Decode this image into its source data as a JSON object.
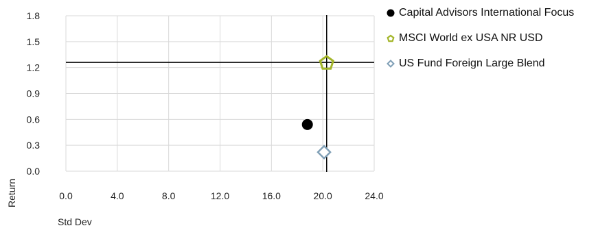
{
  "chart_data": {
    "type": "scatter",
    "xlabel": "Std Dev",
    "ylabel": "Return",
    "xlim": [
      0,
      24
    ],
    "ylim": [
      0,
      1.8
    ],
    "xticks": [
      "0.0",
      "4.0",
      "8.0",
      "12.0",
      "16.0",
      "20.0",
      "24.0"
    ],
    "yticks": [
      "0.0",
      "0.3",
      "0.6",
      "0.9",
      "1.2",
      "1.5",
      "1.8"
    ],
    "grid": true,
    "legend_position": "right",
    "reference_lines": {
      "x": 20.3,
      "y": 1.26
    },
    "series": [
      {
        "name": "Capital Advisors International Focus",
        "x": 18.8,
        "y": 0.54,
        "marker": "circle",
        "color": "#000000",
        "icon": "filled-circle-icon"
      },
      {
        "name": "MSCI World ex USA NR USD",
        "x": 20.3,
        "y": 1.26,
        "marker": "pentagon",
        "color": "#a4b62a",
        "icon": "pentagon-outline-icon"
      },
      {
        "name": "US Fund Foreign Large Blend",
        "x": 20.1,
        "y": 0.22,
        "marker": "diamond",
        "color": "#7f9fb6",
        "icon": "diamond-outline-icon"
      }
    ]
  }
}
